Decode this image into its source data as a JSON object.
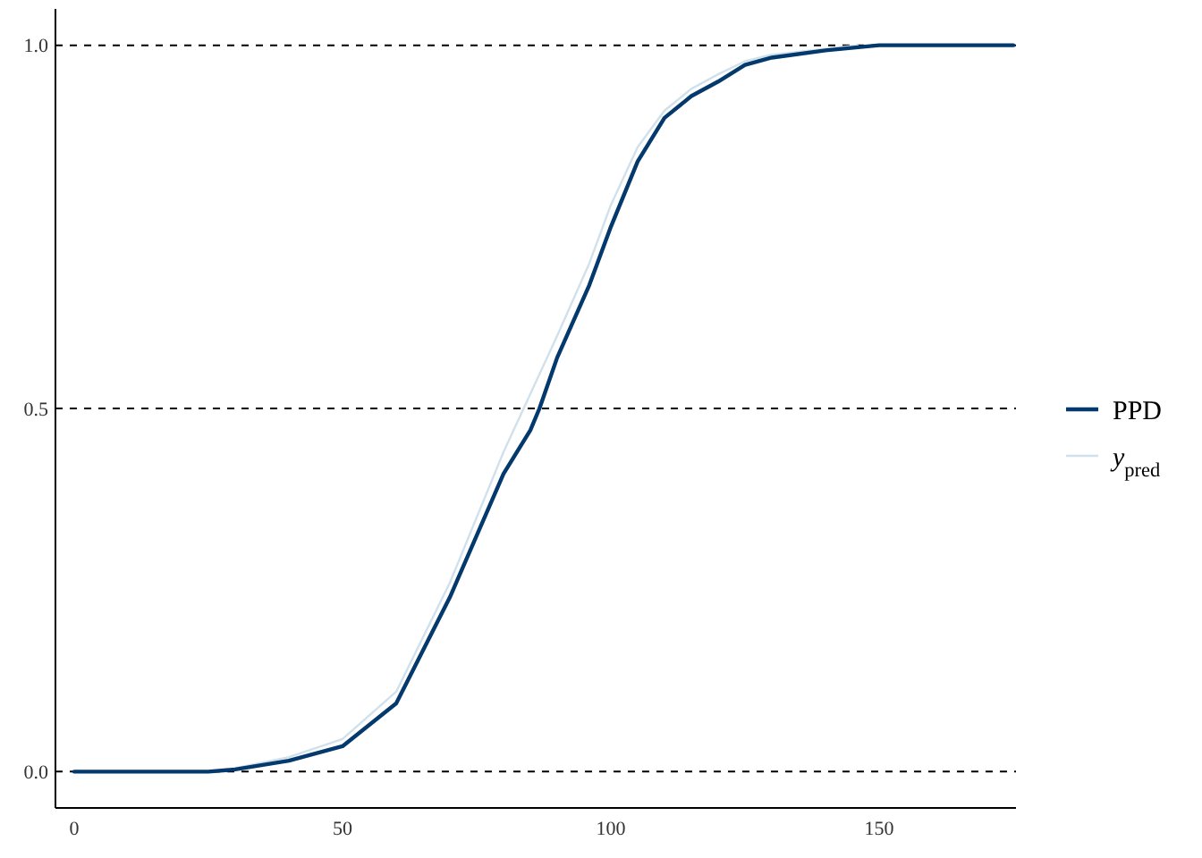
{
  "chart_data": {
    "type": "line",
    "x": [
      0,
      25,
      30,
      40,
      50,
      60,
      70,
      80,
      85,
      86.7,
      90,
      96,
      100,
      105,
      110,
      115,
      120,
      125,
      130,
      140,
      150,
      175
    ],
    "series": [
      {
        "name": "PPD",
        "color": "#03396c",
        "values": [
          0,
          0,
          0.003,
          0.015,
          0.035,
          0.094,
          0.24,
          0.41,
          0.47,
          0.5,
          0.57,
          0.67,
          0.75,
          0.84,
          0.9,
          0.93,
          0.95,
          0.973,
          0.983,
          0.993,
          1,
          1
        ]
      },
      {
        "name": "y$_{pred}$",
        "color": "#d1e1ec",
        "x": [
          28,
          40,
          50,
          60,
          70,
          80,
          85,
          90,
          96,
          100,
          105,
          110,
          115,
          120,
          125,
          130,
          140,
          146
        ],
        "values": [
          0.002,
          0.02,
          0.045,
          0.11,
          0.26,
          0.44,
          0.52,
          0.6,
          0.7,
          0.78,
          0.86,
          0.91,
          0.94,
          0.96,
          0.978,
          0.987,
          0.995,
          1
        ]
      }
    ],
    "xlim": [
      -3.5,
      175.5
    ],
    "ylim": [
      -0.05,
      1.05
    ],
    "xticks": [
      0,
      50,
      100,
      150
    ],
    "yticks": [
      {
        "value": 0,
        "label": "0.0"
      },
      {
        "value": 0.5,
        "label": "0.5"
      },
      {
        "value": 1,
        "label": "1.0"
      }
    ],
    "ref_lines": [
      {
        "axis": "y",
        "value": 0,
        "color": "#000000",
        "line_style": "dashed"
      },
      {
        "axis": "y",
        "value": 0.5,
        "color": "#000000",
        "line_style": "dashed"
      },
      {
        "axis": "y",
        "value": 1,
        "color": "#000000",
        "line_style": "dashed"
      }
    ],
    "legend": "right"
  }
}
